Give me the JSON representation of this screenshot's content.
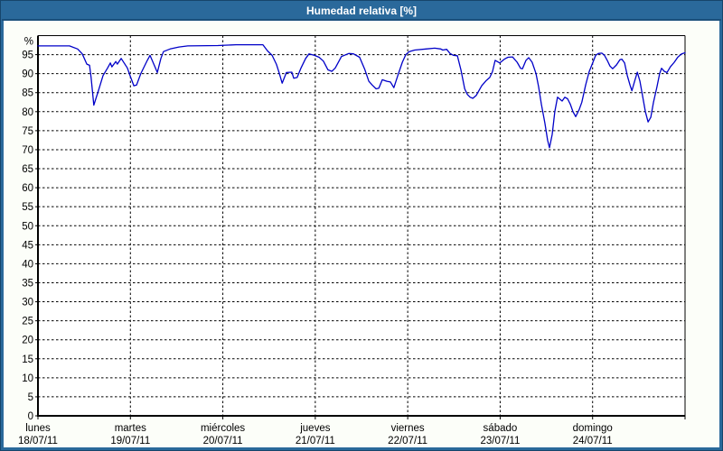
{
  "window": {
    "title": "Humedad relativa [%]"
  },
  "colors": {
    "titlebar_bg": "#2a699b",
    "titlebar_edge": "#1b4f7b",
    "frame_outer": "#16456b",
    "content_bg": "#fcfef9",
    "plot_bg": "#ffffff",
    "grid": "#000000",
    "axis": "#000000",
    "text": "#000000",
    "title_text": "#ffffff",
    "line": "#0000c8"
  },
  "chart_data": {
    "type": "line",
    "title": "Humedad relativa [%]",
    "y_unit_label": "%",
    "ylim": [
      0,
      100
    ],
    "y_ticks": [
      0,
      5,
      10,
      15,
      20,
      25,
      30,
      35,
      40,
      45,
      50,
      55,
      60,
      65,
      70,
      75,
      80,
      85,
      90,
      95
    ],
    "x_range_hours": [
      0,
      168
    ],
    "grid": "dashed",
    "legend_position": "none",
    "x_days": [
      {
        "name": "lunes",
        "date": "18/07/11"
      },
      {
        "name": "martes",
        "date": "19/07/11"
      },
      {
        "name": "miércoles",
        "date": "20/07/11"
      },
      {
        "name": "jueves",
        "date": "21/07/11"
      },
      {
        "name": "viernes",
        "date": "22/07/11"
      },
      {
        "name": "sábado",
        "date": "23/07/11"
      },
      {
        "name": "domingo",
        "date": "24/07/11"
      }
    ],
    "series": [
      {
        "name": "Humedad relativa",
        "color": "#0000c8",
        "points": [
          [
            0,
            97.3
          ],
          [
            8.2,
            97.3
          ],
          [
            10.3,
            96.5
          ],
          [
            11.5,
            95.2
          ],
          [
            12.7,
            92.5
          ],
          [
            13.4,
            92.2
          ],
          [
            13.8,
            89
          ],
          [
            14.5,
            81.7
          ],
          [
            15.7,
            85.5
          ],
          [
            16.9,
            89.5
          ],
          [
            18.1,
            91.5
          ],
          [
            18.8,
            92.8
          ],
          [
            19.2,
            91.8
          ],
          [
            20.2,
            93.2
          ],
          [
            20.6,
            92.5
          ],
          [
            21.6,
            94
          ],
          [
            23.2,
            91.5
          ],
          [
            23.9,
            89.5
          ],
          [
            24.9,
            86.8
          ],
          [
            25.6,
            87
          ],
          [
            26.7,
            90
          ],
          [
            28.4,
            93.5
          ],
          [
            29.1,
            94.8
          ],
          [
            30.3,
            92
          ],
          [
            31.0,
            90.3
          ],
          [
            31.9,
            94
          ],
          [
            32.6,
            95.8
          ],
          [
            34.3,
            96.5
          ],
          [
            36.6,
            97
          ],
          [
            38.9,
            97.3
          ],
          [
            46.7,
            97.4
          ],
          [
            51.4,
            97.6
          ],
          [
            58.4,
            97.6
          ],
          [
            59.6,
            96
          ],
          [
            60.8,
            94.8
          ],
          [
            61.9,
            92.5
          ],
          [
            62.6,
            90.3
          ],
          [
            63.4,
            87.5
          ],
          [
            64.5,
            90.3
          ],
          [
            65.9,
            90.4
          ],
          [
            66.4,
            88.8
          ],
          [
            67.3,
            89
          ],
          [
            68.3,
            91.5
          ],
          [
            69.5,
            94
          ],
          [
            70.4,
            95.2
          ],
          [
            71.8,
            94.8
          ],
          [
            73.0,
            94.3
          ],
          [
            74.1,
            93.3
          ],
          [
            75.3,
            91
          ],
          [
            76.3,
            90.6
          ],
          [
            77.2,
            91.5
          ],
          [
            78.8,
            94.5
          ],
          [
            80.7,
            95.3
          ],
          [
            81.9,
            95.2
          ],
          [
            83.5,
            94.3
          ],
          [
            84.9,
            91
          ],
          [
            85.9,
            88
          ],
          [
            86.8,
            87
          ],
          [
            87.8,
            86
          ],
          [
            88.5,
            86.2
          ],
          [
            89.4,
            88.4
          ],
          [
            90.6,
            88
          ],
          [
            91.5,
            87.8
          ],
          [
            92.4,
            86.3
          ],
          [
            93.6,
            90
          ],
          [
            94.6,
            93
          ],
          [
            95.5,
            95
          ],
          [
            96.4,
            95.8
          ],
          [
            97.8,
            96.2
          ],
          [
            100.7,
            96.5
          ],
          [
            103.0,
            96.7
          ],
          [
            104.6,
            96.5
          ],
          [
            105.1,
            96.2
          ],
          [
            106.1,
            96.4
          ],
          [
            107.0,
            95.3
          ],
          [
            107.9,
            94.8
          ],
          [
            108.9,
            94.7
          ],
          [
            109.8,
            91
          ],
          [
            110.8,
            86
          ],
          [
            111.5,
            84.5
          ],
          [
            112.2,
            83.8
          ],
          [
            112.9,
            83.5
          ],
          [
            113.8,
            84.3
          ],
          [
            115.2,
            86.8
          ],
          [
            116.4,
            88.2
          ],
          [
            117.3,
            89
          ],
          [
            118.0,
            90.5
          ],
          [
            118.7,
            93.5
          ],
          [
            119.9,
            92.8
          ],
          [
            121.1,
            93.8
          ],
          [
            122.0,
            94.3
          ],
          [
            123.2,
            94.4
          ],
          [
            124.4,
            93
          ],
          [
            125.3,
            91.4
          ],
          [
            125.8,
            91.3
          ],
          [
            126.7,
            93.5
          ],
          [
            127.4,
            94.2
          ],
          [
            128.3,
            93
          ],
          [
            129.3,
            90
          ],
          [
            130.0,
            86.5
          ],
          [
            130.7,
            82
          ],
          [
            131.6,
            77
          ],
          [
            132.3,
            72.5
          ],
          [
            132.8,
            70.5
          ],
          [
            133.5,
            74
          ],
          [
            134.2,
            80
          ],
          [
            134.9,
            83.8
          ],
          [
            135.6,
            83.2
          ],
          [
            136.1,
            82.8
          ],
          [
            136.8,
            83.8
          ],
          [
            137.5,
            83.4
          ],
          [
            138.2,
            82
          ],
          [
            138.9,
            80
          ],
          [
            139.6,
            78.7
          ],
          [
            140.5,
            80.5
          ],
          [
            141.2,
            82.5
          ],
          [
            142.2,
            87
          ],
          [
            143.1,
            90.5
          ],
          [
            143.8,
            92.3
          ],
          [
            144.8,
            94.8
          ],
          [
            145.5,
            95.3
          ],
          [
            146.4,
            95.4
          ],
          [
            147.1,
            94.8
          ],
          [
            147.8,
            93.5
          ],
          [
            148.5,
            92
          ],
          [
            149.2,
            91.3
          ],
          [
            150.2,
            92.3
          ],
          [
            151.1,
            93.7
          ],
          [
            151.6,
            93.8
          ],
          [
            152.3,
            92.8
          ],
          [
            153.0,
            89.5
          ],
          [
            153.7,
            87
          ],
          [
            154.2,
            85.5
          ],
          [
            154.9,
            88
          ],
          [
            155.6,
            90.4
          ],
          [
            156.3,
            88
          ],
          [
            157.0,
            84
          ],
          [
            157.7,
            80
          ],
          [
            158.4,
            77.3
          ],
          [
            159.1,
            78.5
          ],
          [
            159.8,
            82.5
          ],
          [
            160.7,
            86.5
          ],
          [
            161.4,
            90
          ],
          [
            161.9,
            91.4
          ],
          [
            162.6,
            90.6
          ],
          [
            163.3,
            90.3
          ],
          [
            164.2,
            91.8
          ],
          [
            165.2,
            93
          ],
          [
            166.1,
            94.3
          ],
          [
            167.1,
            95.2
          ],
          [
            168,
            95.5
          ]
        ]
      }
    ]
  }
}
